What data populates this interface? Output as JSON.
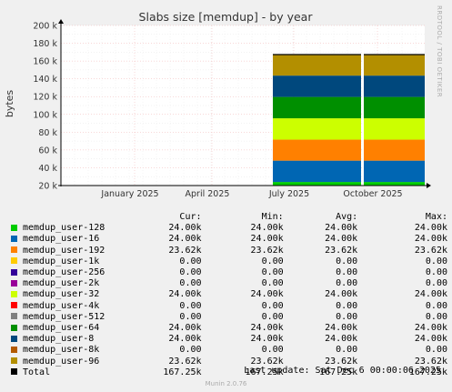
{
  "chart_data": {
    "type": "area",
    "title": "Slabs size [memdup] - by year",
    "ylabel": "bytes",
    "ylim": [
      20000,
      200000
    ],
    "yticks": [
      "20 k",
      "40 k",
      "60 k",
      "80 k",
      "100 k",
      "120 k",
      "140 k",
      "160 k",
      "180 k",
      "200 k"
    ],
    "ytick_values": [
      20000,
      40000,
      60000,
      80000,
      100000,
      120000,
      140000,
      160000,
      180000,
      200000
    ],
    "xticks": [
      "January 2025",
      "April 2025",
      "July 2025",
      "October 2025"
    ],
    "grid": true,
    "series": [
      {
        "name": "memdup_user-128",
        "color": "#00cc00",
        "cur": "24.00k",
        "min": "24.00k",
        "avg": "24.00k",
        "max": "24.00k",
        "value": 24000
      },
      {
        "name": "memdup_user-16",
        "color": "#0066b3",
        "cur": "24.00k",
        "min": "24.00k",
        "avg": "24.00k",
        "max": "24.00k",
        "value": 24000
      },
      {
        "name": "memdup_user-192",
        "color": "#ff8000",
        "cur": "23.62k",
        "min": "23.62k",
        "avg": "23.62k",
        "max": "23.62k",
        "value": 23620
      },
      {
        "name": "memdup_user-1k",
        "color": "#ffcc00",
        "cur": "0.00",
        "min": "0.00",
        "avg": "0.00",
        "max": "0.00",
        "value": 0
      },
      {
        "name": "memdup_user-256",
        "color": "#330099",
        "cur": "0.00",
        "min": "0.00",
        "avg": "0.00",
        "max": "0.00",
        "value": 0
      },
      {
        "name": "memdup_user-2k",
        "color": "#990099",
        "cur": "0.00",
        "min": "0.00",
        "avg": "0.00",
        "max": "0.00",
        "value": 0
      },
      {
        "name": "memdup_user-32",
        "color": "#ccff00",
        "cur": "24.00k",
        "min": "24.00k",
        "avg": "24.00k",
        "max": "24.00k",
        "value": 24000
      },
      {
        "name": "memdup_user-4k",
        "color": "#ff0000",
        "cur": "0.00",
        "min": "0.00",
        "avg": "0.00",
        "max": "0.00",
        "value": 0
      },
      {
        "name": "memdup_user-512",
        "color": "#808080",
        "cur": "0.00",
        "min": "0.00",
        "avg": "0.00",
        "max": "0.00",
        "value": 0
      },
      {
        "name": "memdup_user-64",
        "color": "#008f00",
        "cur": "24.00k",
        "min": "24.00k",
        "avg": "24.00k",
        "max": "24.00k",
        "value": 24000
      },
      {
        "name": "memdup_user-8",
        "color": "#00487d",
        "cur": "24.00k",
        "min": "24.00k",
        "avg": "24.00k",
        "max": "24.00k",
        "value": 24000
      },
      {
        "name": "memdup_user-8k",
        "color": "#b35a00",
        "cur": "0.00",
        "min": "0.00",
        "avg": "0.00",
        "max": "0.00",
        "value": 0
      },
      {
        "name": "memdup_user-96",
        "color": "#b38f00",
        "cur": "23.62k",
        "min": "23.62k",
        "avg": "23.62k",
        "max": "23.62k",
        "value": 23620
      }
    ],
    "total": {
      "name": "Total",
      "color": "#000000",
      "cur": "167.25k",
      "min": "167.25k",
      "avg": "167.25k",
      "max": "167.25k",
      "value": 167250
    }
  },
  "legend_headers": {
    "cur": "Cur:",
    "min": "Min:",
    "avg": "Avg:",
    "max": "Max:"
  },
  "last_update": "Last update: Sat Dec  6 00:00:06 2025",
  "footer": "Munin 2.0.76",
  "side_label": "RRDTOOL / TOBI OETIKER"
}
